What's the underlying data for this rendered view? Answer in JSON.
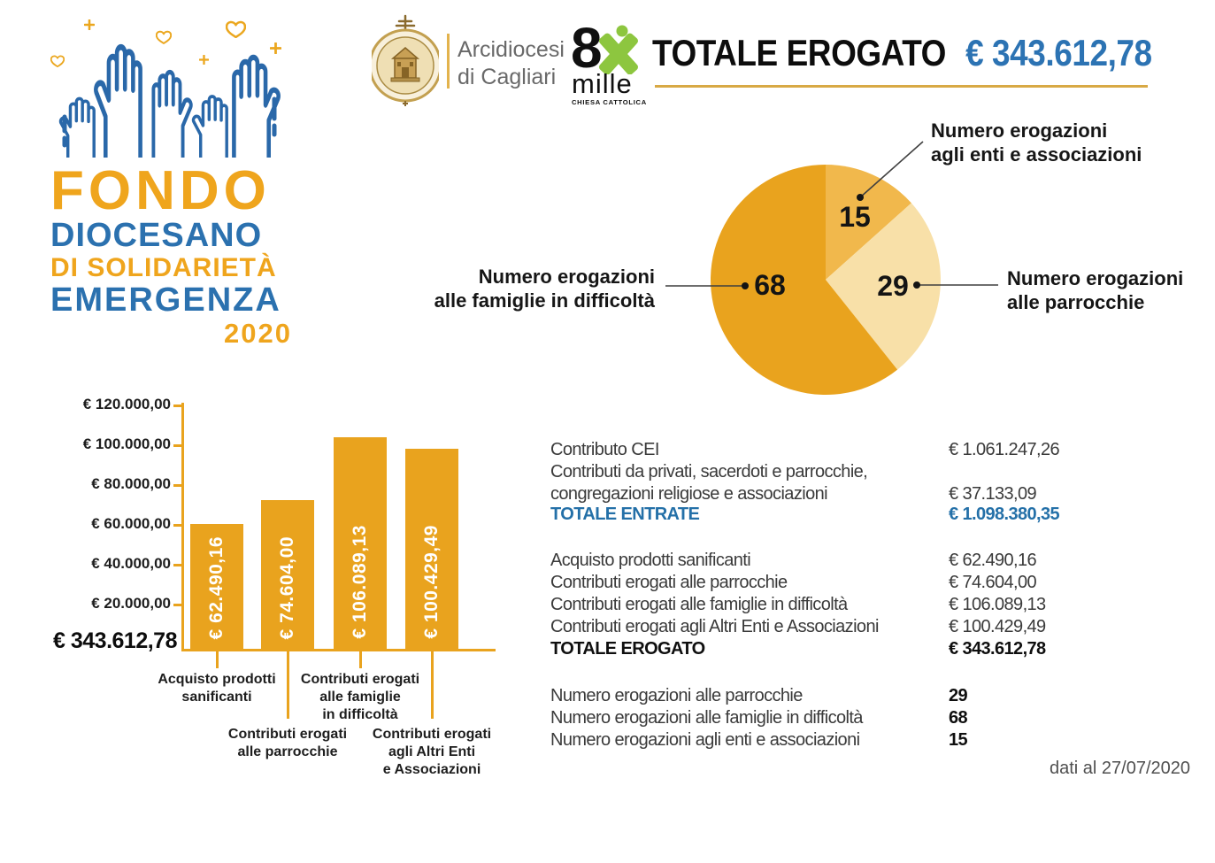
{
  "brand": {
    "fund": {
      "line1": "FONDO",
      "line2": "DIOCESANO",
      "line3": "DI SOLIDARIETÀ",
      "line4": "EMERGENZA",
      "year": "2020"
    },
    "org": {
      "line1": "Arcidiocesi",
      "line2": "di Cagliari"
    },
    "oxm": {
      "eight": "8",
      "mille": "mille",
      "subtitle": "CHIESA CATTOLICA"
    }
  },
  "header": {
    "total_label": "TOTALE EROGATO",
    "total_value": "€ 343.612,78"
  },
  "pie_callouts": {
    "enti": {
      "line1": "Numero erogazioni",
      "line2": "agli enti e associazioni"
    },
    "famiglie": {
      "line1": "Numero erogazioni",
      "line2": "alle famiglie in difficoltà"
    },
    "parrocchie": {
      "line1": "Numero erogazioni",
      "line2": "alle parrocchie"
    }
  },
  "chart_data": [
    {
      "type": "pie",
      "start_angle_deg": 0,
      "direction": "clockwise",
      "slices": [
        {
          "label": "Numero erogazioni agli enti e associazioni",
          "value": 15,
          "color": "#F1B84C"
        },
        {
          "label": "Numero erogazioni alle parrocchie",
          "value": 29,
          "color": "#F8E0A8"
        },
        {
          "label": "Numero erogazioni alle famiglie in difficoltà",
          "value": 68,
          "color": "#E9A31E"
        }
      ]
    },
    {
      "type": "bar",
      "bar_color": "#E9A31E",
      "ylim": [
        0,
        120000
      ],
      "categories": [
        "Acquisto prodotti sanificanti",
        "Contributi erogati alle parrocchie",
        "Contributi erogati alle famiglie in difficoltà",
        "Contributi erogati agli Altri Enti e Associazioni"
      ],
      "categories_lines": [
        [
          "Acquisto prodotti",
          "sanificanti"
        ],
        [
          "Contributi erogati",
          "alle parrocchie"
        ],
        [
          "Contributi erogati",
          "alle famiglie",
          "in difficoltà"
        ],
        [
          "Contributi erogati",
          "agli Altri Enti",
          "e Associazioni"
        ]
      ],
      "values": [
        62490.16,
        74604.0,
        106089.13,
        100429.49
      ],
      "bar_labels": [
        "€ 62.490,16",
        "€ 74.604,00",
        "€ 106.089,13",
        "€ 100.429,49"
      ],
      "y_ticks": [
        {
          "label": "€ 120.000,00",
          "value": 120000
        },
        {
          "label": "€ 100.000,00",
          "value": 100000
        },
        {
          "label": "€ 80.000,00",
          "value": 80000
        },
        {
          "label": "€ 60.000,00",
          "value": 60000
        },
        {
          "label": "€ 40.000,00",
          "value": 40000
        },
        {
          "label": "€ 20.000,00",
          "value": 20000
        }
      ],
      "total_label": "€ 343.612,78"
    }
  ],
  "tables": {
    "entrate": {
      "rows": [
        {
          "label": "Contributo CEI",
          "value": "€ 1.061.247,26"
        },
        {
          "label": "Contributi da privati, sacerdoti e parrocchie,",
          "value": ""
        },
        {
          "label": "congregazioni religiose e associazioni",
          "value": "€ 37.133,09"
        },
        {
          "label": "TOTALE ENTRATE",
          "value": "€ 1.098.380,35"
        }
      ]
    },
    "erogato": {
      "rows": [
        {
          "label": "Acquisto prodotti sanificanti",
          "value": "€ 62.490,16"
        },
        {
          "label": "Contributi erogati alle parrocchie",
          "value": "€ 74.604,00"
        },
        {
          "label": "Contributi erogati alle famiglie in difficoltà",
          "value": "€ 106.089,13"
        },
        {
          "label": "Contributi erogati agli Altri Enti e Associazioni",
          "value": "€ 100.429,49"
        },
        {
          "label": "TOTALE EROGATO",
          "value": "€ 343.612,78"
        }
      ]
    },
    "numeri": {
      "rows": [
        {
          "label": "Numero erogazioni alle parrocchie",
          "value": "29"
        },
        {
          "label": "Numero erogazioni alle famiglie in difficoltà",
          "value": "68"
        },
        {
          "label": "Numero erogazioni agli enti e associazioni",
          "value": "15"
        }
      ]
    }
  },
  "footer": {
    "note": "dati al 27/07/2020"
  },
  "colors": {
    "gold": "#E9A31E",
    "gold_mid": "#F1B84C",
    "gold_light": "#F8E0A8",
    "blue": "#2B71AF",
    "blue_value": "#2C73B3",
    "green_8xmille": "#8DC63F",
    "rule_gold": "#D8A945"
  }
}
